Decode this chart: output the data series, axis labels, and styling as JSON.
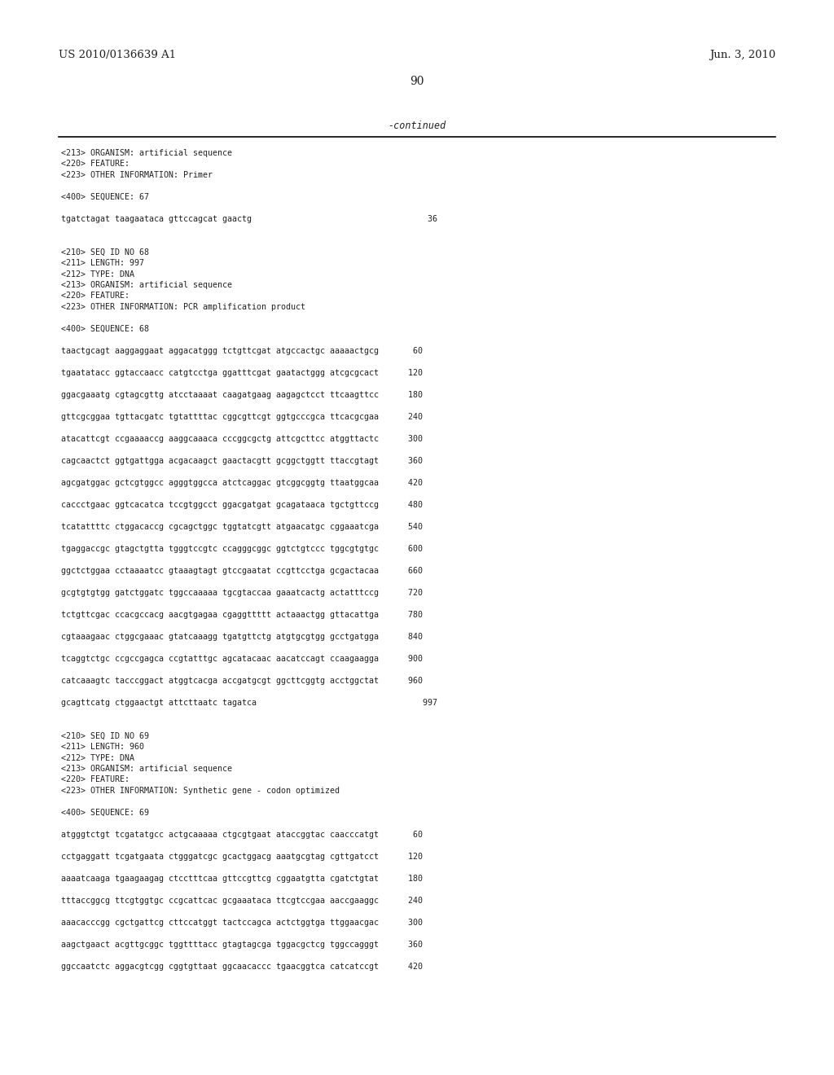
{
  "header_left": "US 2010/0136639 A1",
  "header_right": "Jun. 3, 2010",
  "page_number": "90",
  "continued_text": "-continued",
  "background_color": "#ffffff",
  "text_color": "#231f20",
  "seq_lines": [
    "<213> ORGANISM: artificial sequence",
    "<220> FEATURE:",
    "<223> OTHER INFORMATION: Primer",
    "",
    "<400> SEQUENCE: 67",
    "",
    "tgatctagat taagaataca gttccagcat gaactg                                    36",
    "",
    "",
    "<210> SEQ ID NO 68",
    "<211> LENGTH: 997",
    "<212> TYPE: DNA",
    "<213> ORGANISM: artificial sequence",
    "<220> FEATURE:",
    "<223> OTHER INFORMATION: PCR amplification product",
    "",
    "<400> SEQUENCE: 68",
    "",
    "taactgcagt aaggaggaat aggacatggg tctgttcgat atgccactgc aaaaactgcg       60",
    "",
    "tgaatatacc ggtaccaacc catgtcctga ggatttcgat gaatactggg atcgcgcact      120",
    "",
    "ggacgaaatg cgtagcgttg atcctaaaat caagatgaag aagagctcct ttcaagttcc      180",
    "",
    "gttcgcggaa tgttacgatc tgtattttac cggcgttcgt ggtgcccgca ttcacgcgaa      240",
    "",
    "atacattcgt ccgaaaaccg aaggcaaaca cccggcgctg attcgcttcc atggttactc      300",
    "",
    "cagcaactct ggtgattgga acgacaagct gaactacgtt gcggctggtt ttaccgtagt      360",
    "",
    "agcgatggac gctcgtggcc agggtggcca atctcaggac gtcggcggtg ttaatggcaa      420",
    "",
    "caccctgaac ggtcacatca tccgtggcct ggacgatgat gcagataaca tgctgttccg      480",
    "",
    "tcatattttc ctggacaccg cgcagctggc tggtatcgtt atgaacatgc cggaaatcga      540",
    "",
    "tgaggaccgc gtagctgtta tgggtccgtc ccagggcggc ggtctgtccc tggcgtgtgc      600",
    "",
    "ggctctggaa cctaaaatcc gtaaagtagt gtccgaatat ccgttcctga gcgactacaa      660",
    "",
    "gcgtgtgtgg gatctggatc tggccaaaaa tgcgtaccaa gaaatcactg actatttccg      720",
    "",
    "tctgttcgac ccacgccacg aacgtgagaa cgaggttttt actaaactgg gttacattga      780",
    "",
    "cgtaaagaac ctggcgaaac gtatcaaagg tgatgttctg atgtgcgtgg gcctgatgga      840",
    "",
    "tcaggtctgc ccgccgagca ccgtatttgc agcatacaac aacatccagt ccaagaagga      900",
    "",
    "catcaaagtc tacccggact atggtcacga accgatgcgt ggcttcggtg acctggctat      960",
    "",
    "gcagttcatg ctggaactgt attcttaatc tagatca                                  997",
    "",
    "",
    "<210> SEQ ID NO 69",
    "<211> LENGTH: 960",
    "<212> TYPE: DNA",
    "<213> ORGANISM: artificial sequence",
    "<220> FEATURE:",
    "<223> OTHER INFORMATION: Synthetic gene - codon optimized",
    "",
    "<400> SEQUENCE: 69",
    "",
    "atgggtctgt tcgatatgcc actgcaaaaa ctgcgtgaat ataccggtac caacccatgt       60",
    "",
    "cctgaggatt tcgatgaata ctgggatcgc gcactggacg aaatgcgtag cgttgatcct      120",
    "",
    "aaaatcaaga tgaagaagag ctcctttcaa gttccgttcg cggaatgtta cgatctgtat      180",
    "",
    "tttaccggcg ttcgtggtgc ccgcattcac gcgaaataca ttcgtccgaa aaccgaaggc      240",
    "",
    "aaacacccgg cgctgattcg cttccatggt tactccagca actctggtga ttggaacgac      300",
    "",
    "aagctgaact acgttgcggc tggttttacc gtagtagcga tggacgctcg tggccagggt      360",
    "",
    "ggccaatctc aggacgtcgg cggtgttaat ggcaacaccc tgaacggtca catcatccgt      420"
  ]
}
